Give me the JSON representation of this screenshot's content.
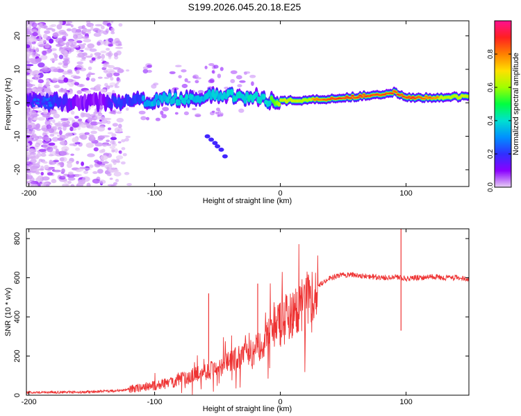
{
  "title": "S199.2026.045.20.18.E25",
  "chart_data": [
    {
      "type": "heatmap",
      "xlabel": "Height of straight line (km)",
      "ylabel": "Frequency (Hz)",
      "xlim": [
        -202,
        150
      ],
      "ylim": [
        -25,
        24.5
      ],
      "xticks": [
        -200,
        -100,
        0,
        100
      ],
      "yticks": [
        -20,
        -10,
        0,
        10,
        20
      ],
      "colorbar": {
        "label": "Normalized spectral amplitude",
        "range": [
          0.0,
          1.0
        ],
        "ticks": [
          0.0,
          0.2,
          0.4,
          0.6,
          0.8
        ],
        "tick_labels": [
          "0.0",
          "0.2",
          "0.4",
          "0.6",
          "0.8"
        ],
        "colormap": [
          "#e8d0f4",
          "#8a00ff",
          "#3030ff",
          "#0090ff",
          "#00e0d0",
          "#00ff40",
          "#a0ff00",
          "#ffe000",
          "#ff8000",
          "#ff2020",
          "#ff1090"
        ]
      },
      "ridge": {
        "x": [
          -200,
          -180,
          -160,
          -140,
          -125,
          -110,
          -100,
          -80,
          -60,
          -40,
          -20,
          -10,
          0,
          20,
          50,
          80,
          90,
          100,
          120,
          150
        ],
        "frequency": [
          0.5,
          0.2,
          0.0,
          0.3,
          0.5,
          0.5,
          0.8,
          1.2,
          1.8,
          2.3,
          1.5,
          0.8,
          0.6,
          0.8,
          1.5,
          2.6,
          3.2,
          1.5,
          1.6,
          1.8
        ],
        "amplitude": [
          0.15,
          0.2,
          0.1,
          0.1,
          0.28,
          0.32,
          0.35,
          0.38,
          0.35,
          0.38,
          0.45,
          0.52,
          0.62,
          0.75,
          0.9,
          0.95,
          0.85,
          0.92,
          0.8,
          0.7
        ]
      },
      "side_branch": {
        "x": [
          -58,
          -55,
          -52,
          -50,
          -47,
          -44
        ],
        "frequency": [
          -10,
          -11,
          -12,
          -13,
          -14,
          -16
        ],
        "amplitude": 0.18
      }
    },
    {
      "type": "line",
      "xlabel": "Height of straight line (km)",
      "ylabel": "SNR (10 * v/v)",
      "xlim": [
        -202,
        150
      ],
      "ylim": [
        0,
        850
      ],
      "xticks": [
        -200,
        -100,
        0,
        100
      ],
      "yticks": [
        0,
        200,
        400,
        600,
        800
      ],
      "color": "#ee3333",
      "series": [
        {
          "name": "SNR",
          "x": [
            -202,
            -180,
            -160,
            -140,
            -125,
            -110,
            -100,
            -90,
            -80,
            -70,
            -60,
            -50,
            -40,
            -30,
            -20,
            -10,
            0,
            10,
            20,
            30,
            40,
            50,
            60,
            70,
            80,
            90,
            96,
            100,
            110,
            120,
            130,
            140,
            150
          ],
          "values": [
            15,
            15,
            15,
            20,
            25,
            40,
            50,
            60,
            80,
            100,
            120,
            140,
            170,
            200,
            230,
            300,
            380,
            420,
            480,
            560,
            600,
            615,
            615,
            605,
            600,
            605,
            600,
            595,
            600,
            605,
            600,
            600,
            595
          ]
        }
      ],
      "annotations": [
        {
          "x": -57,
          "y": 520,
          "label": "spike"
        },
        {
          "x": -18,
          "y": 570,
          "label": "spike"
        },
        {
          "x": 96,
          "y": 850,
          "label": "spike"
        },
        {
          "x": 96,
          "y": 330,
          "label": "dip"
        }
      ]
    }
  ]
}
